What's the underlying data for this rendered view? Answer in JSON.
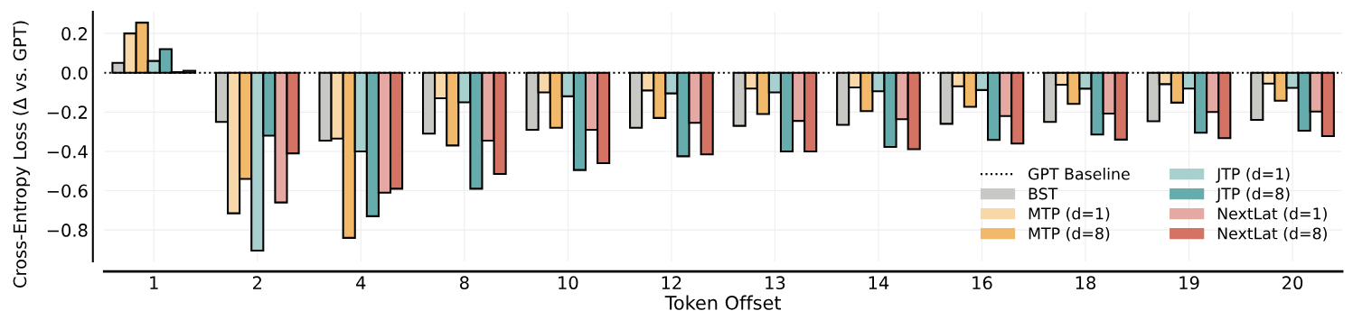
{
  "chart_data": {
    "type": "bar",
    "xlabel": "Token Offset",
    "ylabel": "Cross-Entropy Loss (Δ vs. GPT)",
    "categories": [
      "1",
      "2",
      "4",
      "8",
      "10",
      "12",
      "13",
      "14",
      "16",
      "18",
      "19",
      "20"
    ],
    "series": [
      {
        "name": "BST",
        "color": "#c8c8c4",
        "values": [
          0.05,
          -0.25,
          -0.345,
          -0.31,
          -0.29,
          -0.28,
          -0.27,
          -0.265,
          -0.26,
          -0.25,
          -0.247,
          -0.24
        ]
      },
      {
        "name": "MTP (d=1)",
        "color": "#f8d8a8",
        "values": [
          0.2,
          -0.715,
          -0.335,
          -0.13,
          -0.1,
          -0.09,
          -0.08,
          -0.075,
          -0.069,
          -0.061,
          -0.058,
          -0.055
        ]
      },
      {
        "name": "MTP (d=8)",
        "color": "#f2b96a",
        "values": [
          0.255,
          -0.54,
          -0.84,
          -0.37,
          -0.28,
          -0.23,
          -0.21,
          -0.195,
          -0.173,
          -0.158,
          -0.152,
          -0.142
        ]
      },
      {
        "name": "JTP (d=1)",
        "color": "#a8d0ce",
        "values": [
          0.06,
          -0.905,
          -0.4,
          -0.15,
          -0.12,
          -0.105,
          -0.1,
          -0.094,
          -0.088,
          -0.081,
          -0.08,
          -0.077
        ]
      },
      {
        "name": "JTP (d=8)",
        "color": "#66acac",
        "values": [
          0.12,
          -0.32,
          -0.73,
          -0.59,
          -0.495,
          -0.425,
          -0.4,
          -0.377,
          -0.342,
          -0.314,
          -0.305,
          -0.295
        ]
      },
      {
        "name": "NextLat (d=1)",
        "color": "#e6a8a2",
        "values": [
          0.003,
          -0.66,
          -0.61,
          -0.345,
          -0.29,
          -0.255,
          -0.245,
          -0.236,
          -0.22,
          -0.208,
          -0.2,
          -0.197
        ]
      },
      {
        "name": "NextLat (d=8)",
        "color": "#d47264",
        "values": [
          0.01,
          -0.41,
          -0.59,
          -0.515,
          -0.46,
          -0.415,
          -0.4,
          -0.389,
          -0.36,
          -0.34,
          -0.333,
          -0.322
        ]
      }
    ],
    "ylim": [
      -0.96,
      0.31
    ],
    "yticks": [
      {
        "value": -0.8,
        "label": "−0.8"
      },
      {
        "value": -0.6,
        "label": "−0.6"
      },
      {
        "value": -0.4,
        "label": "−0.4"
      },
      {
        "value": -0.2,
        "label": "−0.2"
      },
      {
        "value": 0,
        "label": "0.0"
      },
      {
        "value": 0.2,
        "label": "0.2"
      }
    ],
    "ref_lines": [
      {
        "axis": "y",
        "value": 0,
        "label": "GPT Baseline",
        "color": "#000000",
        "line_style": "dotted"
      }
    ],
    "grid": true,
    "legend": "bottom right"
  }
}
